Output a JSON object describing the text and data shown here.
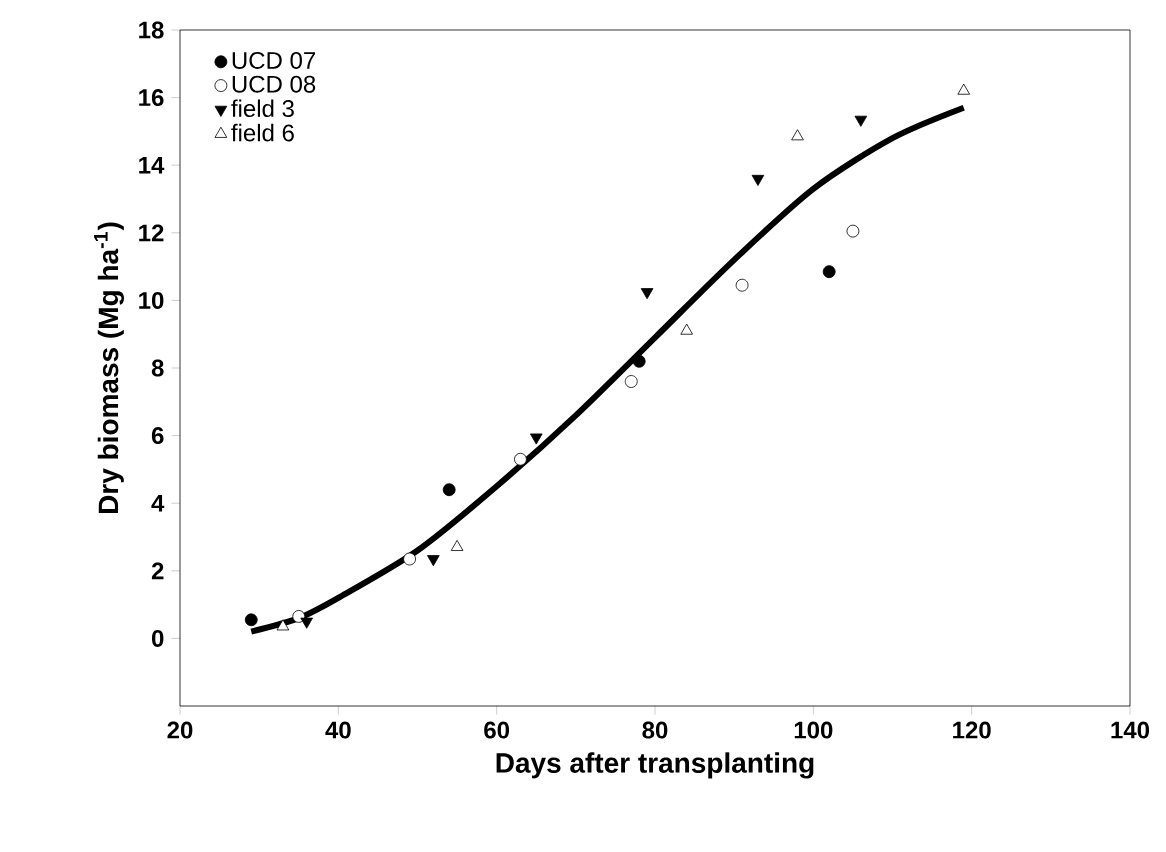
{
  "chart_data": {
    "type": "scatter",
    "xlabel": "Days after transplanting",
    "ylabel": "Dry biomass (Mg ha$^{-1}$)",
    "xlim": [
      20,
      140
    ],
    "xticks": [
      20,
      40,
      60,
      80,
      100,
      120,
      140
    ],
    "ylim": [
      -2,
      18
    ],
    "yticks": [
      0,
      2,
      4,
      6,
      8,
      10,
      12,
      14,
      16,
      18
    ],
    "legend": "top left",
    "grid": false,
    "series": [
      {
        "name": "UCD 07",
        "color": "#000000",
        "marker": "circle",
        "x": [
          29,
          54,
          78,
          102
        ],
        "values": [
          0.55,
          4.4,
          8.2,
          10.85
        ]
      },
      {
        "name": "UCD 08",
        "color": "#ffffff",
        "marker": "circle",
        "x": [
          35,
          49,
          63,
          77,
          91,
          105
        ],
        "values": [
          0.65,
          2.35,
          5.3,
          7.6,
          10.45,
          12.05
        ]
      },
      {
        "name": "field 3",
        "color": "#000000",
        "marker": "triangle-down",
        "x": [
          36,
          52,
          65,
          79,
          93,
          106
        ],
        "values": [
          0.5,
          2.35,
          5.95,
          10.25,
          13.6,
          15.35
        ]
      },
      {
        "name": "field 6",
        "color": "#ffffff",
        "marker": "triangle",
        "x": [
          33,
          55,
          84,
          98,
          119
        ],
        "values": [
          0.35,
          2.7,
          9.1,
          14.85,
          16.2
        ]
      },
      {
        "type": "line",
        "color": "#000000",
        "line_style": "solid",
        "x": [
          29,
          35,
          40,
          50,
          60,
          70,
          80,
          90,
          100,
          110,
          119
        ],
        "values": [
          0.2,
          0.6,
          1.2,
          2.6,
          4.5,
          6.6,
          8.9,
          11.2,
          13.3,
          14.8,
          15.7
        ]
      }
    ]
  }
}
